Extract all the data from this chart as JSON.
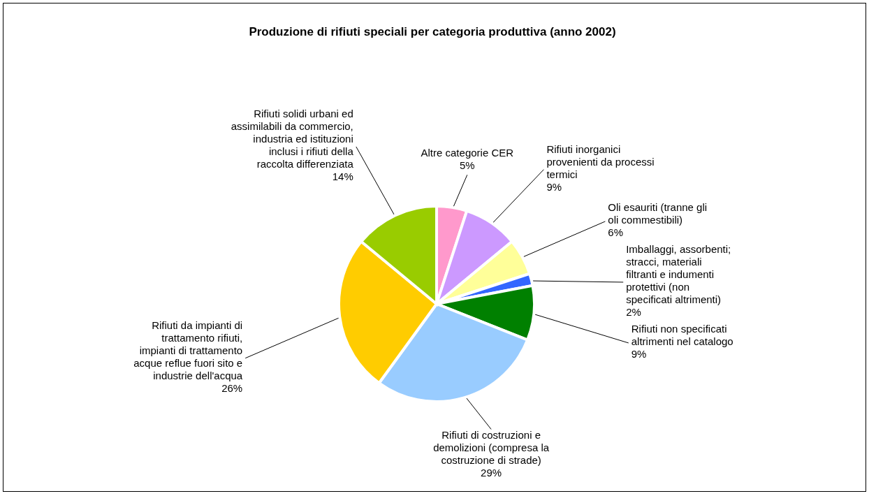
{
  "chart_data": {
    "type": "pie",
    "title": "Produzione di rifiuti speciali per categoria produttiva (anno 2002)",
    "categories": [
      "Altre categorie CER",
      "Rifiuti inorganici provenienti da processi termici",
      "Oli esauriti (tranne gli oli commestibili)",
      "Imballaggi, assorbenti; stracci, materiali filtranti e indumenti protettivi (non specificati altrimenti)",
      "Rifiuti non specificati altrimenti nel catalogo",
      "Rifiuti di costruzioni e demolizioni (compresa la costruzione di strade)",
      "Rifiuti da impianti di trattamento rifiuti, impianti di trattamento acque reflue fuori sito e industrie dell'acqua",
      "Rifiuti solidi urbani ed assimilabili da commercio, industria ed istituzioni inclusi i rifiuti della raccolta differenziata"
    ],
    "values": [
      5,
      9,
      6,
      2,
      9,
      29,
      26,
      14
    ],
    "value_labels": [
      "5%",
      "9%",
      "6%",
      "2%",
      "9%",
      "29%",
      "26%",
      "14%"
    ],
    "colors": [
      "#ff99cc",
      "#cc99ff",
      "#ffff99",
      "#3366ff",
      "#008000",
      "#99ccff",
      "#ffcc00",
      "#99cc00"
    ],
    "legend": false
  }
}
